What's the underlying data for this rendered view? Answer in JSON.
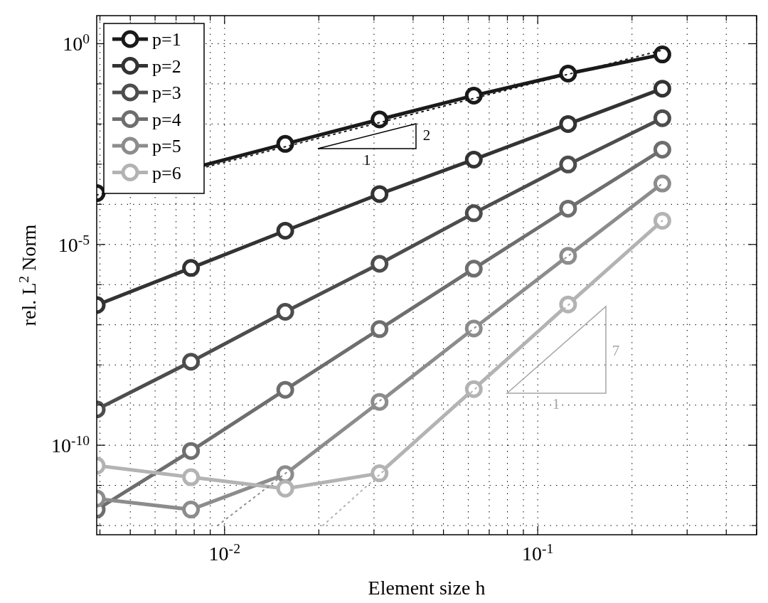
{
  "chart_data": {
    "type": "line",
    "xlabel": "Element size h",
    "ylabel": "rel. L$^{2}$ Norm",
    "log": "xy",
    "grid": true,
    "legend": "top left",
    "marker": "circle",
    "line_style": "solid",
    "xlim": [
      0.00390625,
      0.5
    ],
    "ylim": [
      5.9e-13,
      5
    ],
    "xticks": [
      {
        "value": 0.004,
        "label": null
      },
      {
        "value": 0.005,
        "label": null
      },
      {
        "value": 0.006,
        "label": null
      },
      {
        "value": 0.007,
        "label": null
      },
      {
        "value": 0.008,
        "label": null
      },
      {
        "value": 0.009,
        "label": null
      },
      {
        "value": 0.01,
        "label": "10$^{-2}$"
      },
      {
        "value": 0.02,
        "label": null
      },
      {
        "value": 0.03,
        "label": null
      },
      {
        "value": 0.04,
        "label": null
      },
      {
        "value": 0.05,
        "label": null
      },
      {
        "value": 0.06,
        "label": null
      },
      {
        "value": 0.07,
        "label": null
      },
      {
        "value": 0.08,
        "label": null
      },
      {
        "value": 0.09,
        "label": null
      },
      {
        "value": 0.1,
        "label": "10$^{-1}$"
      },
      {
        "value": 0.2,
        "label": null
      },
      {
        "value": 0.3,
        "label": null
      },
      {
        "value": 0.4,
        "label": null
      },
      {
        "value": 0.5,
        "label": null
      }
    ],
    "yticks": [
      {
        "value": 1e-12,
        "label": null
      },
      {
        "value": 1e-11,
        "label": null
      },
      {
        "value": 1e-10,
        "label": "10$^{-10}$"
      },
      {
        "value": 1e-09,
        "label": null
      },
      {
        "value": 1e-08,
        "label": null
      },
      {
        "value": 1e-07,
        "label": null
      },
      {
        "value": 1e-06,
        "label": null
      },
      {
        "value": 1e-05,
        "label": "10$^{-5}$"
      },
      {
        "value": 0.0001,
        "label": null
      },
      {
        "value": 0.001,
        "label": null
      },
      {
        "value": 0.01,
        "label": null
      },
      {
        "value": 0.1,
        "label": null
      },
      {
        "value": 1,
        "label": "10$^{0}$"
      }
    ],
    "x": [
      0.00390625,
      0.0078125,
      0.015625,
      0.03125,
      0.0625,
      0.125,
      0.25
    ],
    "series": [
      {
        "name": "p=1",
        "color": "#1a1a1a",
        "values": [
          0.00019,
          null,
          0.0032,
          0.013,
          0.051,
          0.18,
          0.54
        ]
      },
      {
        "name": "p=2",
        "color": "#333333",
        "values": [
          3.1e-07,
          2.6e-06,
          2.2e-05,
          0.00018,
          0.0013,
          0.01,
          0.076
        ]
      },
      {
        "name": "p=3",
        "color": "#4d4d4d",
        "values": [
          7.8e-10,
          1.2e-08,
          2.1e-07,
          3.3e-06,
          6e-05,
          0.00098,
          0.014
        ]
      },
      {
        "name": "p=4",
        "color": "#6e6e6e",
        "values": [
          2.5e-12,
          7.2e-11,
          2.4e-09,
          7.8e-08,
          2.5e-06,
          7.8e-05,
          0.0023
        ]
      },
      {
        "name": "p=5",
        "color": "#8c8c8c",
        "values": [
          4.7e-12,
          2.5e-12,
          1.9e-11,
          1.2e-09,
          8.1e-08,
          5.2e-06,
          0.00033
        ]
      },
      {
        "name": "p=6",
        "color": "#b3b3b3",
        "values": [
          3.1e-11,
          1.6e-11,
          8.3e-12,
          2e-11,
          2.5e-09,
          3.2e-07,
          3.9e-05
        ]
      },
      {
        "type": "line",
        "color": "#1a1a1a",
        "marker": "none",
        "line_style": "dotted",
        "x": [
          0.00390625,
          0.25
        ],
        "values": [
          0.00017,
          0.69
        ]
      },
      {
        "type": "line",
        "color": "#8c8c8c",
        "marker": "none",
        "line_style": "dotted",
        "x": [
          0.0095,
          0.25
        ],
        "values": [
          1e-12,
          0.00033
        ]
      },
      {
        "type": "line",
        "color": "#b3b3b3",
        "marker": "none",
        "line_style": "dotted",
        "x": [
          0.0206,
          0.25
        ],
        "values": [
          1e-12,
          3.9e-05
        ]
      }
    ],
    "annotations": [
      "2",
      "1",
      "7",
      "1"
    ]
  }
}
